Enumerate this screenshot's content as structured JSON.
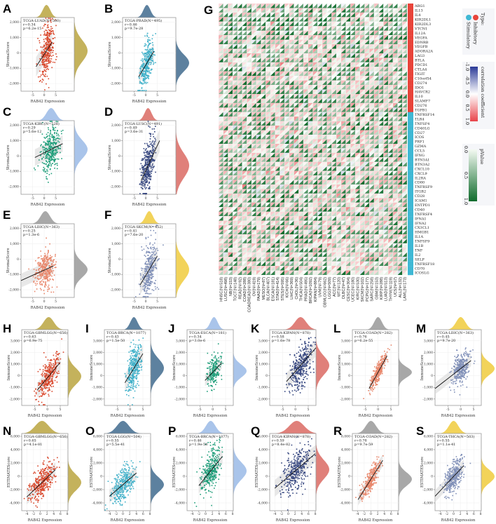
{
  "chart_data": [
    {
      "type": "scatter",
      "label": "A",
      "title": "TCGA-LUAD(N=500)",
      "n": 500,
      "r_text": "r=0.34",
      "p_text": "p=6.2e-15",
      "xlabel": "RAB42 Expression",
      "ylabel": "StromalScore",
      "xticks": [
        -5,
        0,
        5
      ],
      "yticks": [
        2000,
        1000,
        0,
        -1000,
        -2000
      ],
      "xlim": [
        -10,
        13
      ],
      "ylim": [
        -2500,
        2300
      ],
      "color": "#d9472b",
      "density_color": "#c4b25c",
      "x_mean": 1,
      "x_sd": 1.6,
      "y_sd": 700,
      "r": 0.34,
      "fit": [
        -3.5,
        -900,
        3.5,
        700
      ]
    },
    {
      "type": "scatter",
      "label": "B",
      "title": "TCGA-PRAD(N=495)",
      "n": 495,
      "r_text": "r=0.46",
      "p_text": "p=9.7e-28",
      "xlabel": "RAB42 Expression",
      "ylabel": "StromalScore",
      "xticks": [
        -5,
        0,
        5
      ],
      "yticks": [
        2000,
        1000,
        0,
        -1000,
        -2000
      ],
      "xlim": [
        -10,
        13
      ],
      "ylim": [
        -2500,
        2300
      ],
      "color": "#3fb0c9",
      "density_color": "#5d819f",
      "x_mean": 0.5,
      "x_sd": 1.5,
      "y_sd": 550,
      "r": 0.46,
      "fit": [
        -3,
        -1550,
        3.5,
        100
      ]
    },
    {
      "type": "scatter",
      "label": "C",
      "title": "TCGA-KIRC(N=528)",
      "n": 528,
      "r_text": "r=0.29",
      "p_text": "p=5.6e-12",
      "xlabel": "RAB42 Expression",
      "ylabel": "StromalScore",
      "xticks": [
        -5,
        0,
        5
      ],
      "yticks": [
        2000,
        1000,
        0,
        -1000,
        -2000
      ],
      "xlim": [
        -10,
        13
      ],
      "ylim": [
        -2500,
        2300
      ],
      "color": "#1f9e7a",
      "density_color": "#a9c4ea",
      "x_mean": 3,
      "x_sd": 2,
      "y_sd": 600,
      "r": 0.29,
      "fit": [
        -4,
        -100,
        8,
        800
      ]
    },
    {
      "type": "scatter",
      "label": "D",
      "title": "TCGA-LUSC(N=491)",
      "n": 491,
      "r_text": "r=0.49",
      "p_text": "p=3.6e-31",
      "xlabel": "RAB42 Expression",
      "ylabel": "StromalScore",
      "xticks": [
        -5,
        0,
        5
      ],
      "yticks": [
        2000,
        1000,
        0,
        -1000,
        -2000
      ],
      "xlim": [
        -10,
        13
      ],
      "ylim": [
        -2500,
        2300
      ],
      "color": "#34457f",
      "density_color": "#e0807a",
      "x_mean": 1,
      "x_sd": 1.5,
      "y_sd": 800,
      "r": 0.49,
      "fit": [
        -2,
        -1600,
        6,
        1000
      ]
    },
    {
      "type": "scatter",
      "label": "E",
      "title": "TCGA-LIHC(N=363)",
      "n": 363,
      "r_text": "r=0.25",
      "p_text": "p=1.3e-6",
      "xlabel": "RAB42 Expression",
      "ylabel": "StromalScore",
      "xticks": [
        -5,
        0,
        5
      ],
      "yticks": [
        2000,
        1000,
        0,
        -1000,
        -2000
      ],
      "xlim": [
        -10,
        13
      ],
      "ylim": [
        -2500,
        2300
      ],
      "color": "#e8866a",
      "density_color": "#a8a8a8",
      "x_mean": 0.5,
      "x_sd": 2,
      "y_sd": 500,
      "r": 0.25,
      "fit": [
        -10,
        -1400,
        4,
        -450
      ]
    },
    {
      "type": "scatter",
      "label": "F",
      "title": "TCGA-SKCM(N=452)",
      "n": 452,
      "r_text": "r=0.41",
      "p_text": "p=7.6e-20",
      "xlabel": "RAB42 Expression",
      "ylabel": "StromalScore",
      "xticks": [
        -5,
        0,
        5
      ],
      "yticks": [
        2000,
        1000,
        0,
        -1000,
        -2000
      ],
      "xlim": [
        -10,
        13
      ],
      "ylim": [
        -2500,
        2300
      ],
      "color": "#8090b8",
      "density_color": "#f2d35a",
      "x_mean": 1.5,
      "x_sd": 1.6,
      "y_sd": 700,
      "r": 0.41,
      "fit": [
        -2.5,
        -1700,
        5,
        200
      ]
    },
    {
      "type": "scatter",
      "label": "H",
      "title": "TCGA-GBMLGG(N=656)",
      "n": 656,
      "r_text": "r=0.63",
      "p_text": "p=6.9e-75",
      "xlabel": "RAB42 Expression",
      "ylabel": "ImmuneScore",
      "xticks": [
        -5,
        0,
        5
      ],
      "yticks": [
        3000,
        2000,
        1000,
        0,
        -1000,
        -2000
      ],
      "xlim": [
        -10,
        8
      ],
      "ylim": [
        -2550,
        3950
      ],
      "color": "#d9472b",
      "density_color": "#c4b25c",
      "x_mean": 0.5,
      "x_sd": 2,
      "y_sd": 700,
      "r": 0.63,
      "fit": [
        -4,
        -1250,
        5,
        1150
      ]
    },
    {
      "type": "scatter",
      "label": "I",
      "title": "TCGA-BRCA(N=1077)",
      "n": 1077,
      "r_text": "r=0.43",
      "p_text": "p=1.5e-50",
      "xlabel": "RAB42 Expression",
      "ylabel": "ImmuneScore",
      "xticks": [
        -5,
        0,
        5
      ],
      "yticks": [
        3000,
        2000,
        1000,
        0,
        -1000,
        -2000
      ],
      "xlim": [
        -10,
        8
      ],
      "ylim": [
        -2550,
        3950
      ],
      "color": "#3fb0c9",
      "density_color": "#5d819f",
      "x_mean": 1.5,
      "x_sd": 1.4,
      "y_sd": 800,
      "r": 0.43,
      "fit": [
        -2,
        -600,
        5,
        1900
      ]
    },
    {
      "type": "scatter",
      "label": "J",
      "title": "TCGA-ESCA(N=181)",
      "n": 181,
      "r_text": "r=0.34",
      "p_text": "p=3.0e-6",
      "xlabel": "RAB42 Expression",
      "ylabel": "ImmuneScore",
      "xticks": [
        -5,
        0,
        5
      ],
      "yticks": [
        3000,
        2000,
        1000,
        0,
        -1000,
        -2000
      ],
      "xlim": [
        -10,
        8
      ],
      "ylim": [
        -2550,
        3950
      ],
      "color": "#1f9e7a",
      "density_color": "#a9c4ea",
      "x_mean": 0.5,
      "x_sd": 1.4,
      "y_sd": 550,
      "r": 0.34,
      "fit": [
        -3,
        -400,
        3.5,
        1100
      ]
    },
    {
      "type": "scatter",
      "label": "K",
      "title": "TCGA-KIPAN(N=878)",
      "n": 878,
      "r_text": "r=0.58",
      "p_text": "p=1.6e-78",
      "xlabel": "RAB42 Expression",
      "ylabel": "ImmuneScore",
      "xticks": [
        -5,
        0,
        5
      ],
      "yticks": [
        3000,
        2000,
        1000,
        0,
        -1000,
        -2000
      ],
      "xlim": [
        -10,
        8
      ],
      "ylim": [
        -2550,
        3950
      ],
      "color": "#34457f",
      "density_color": "#e0807a",
      "x_mean": 2,
      "x_sd": 2.2,
      "y_sd": 800,
      "r": 0.58,
      "fit": [
        -3.5,
        -500,
        8,
        2400
      ]
    },
    {
      "type": "scatter",
      "label": "L",
      "title": "TCGA-COAD(N=282)",
      "n": 282,
      "r_text": "r=0.76",
      "p_text": "p=6.2e-55",
      "xlabel": "RAB42 Expression",
      "ylabel": "ImmuneScore",
      "xticks": [
        -5,
        0,
        5
      ],
      "yticks": [
        3000,
        2000,
        1000,
        0,
        -1000,
        -2000
      ],
      "xlim": [
        -10,
        8
      ],
      "ylim": [
        -2550,
        3950
      ],
      "color": "#e8866a",
      "density_color": "#a8a8a8",
      "x_mean": 0,
      "x_sd": 1.5,
      "y_sd": 450,
      "r": 0.76,
      "fit": [
        -3.5,
        -1100,
        3.5,
        1700
      ]
    },
    {
      "type": "scatter",
      "label": "M",
      "title": "TCGA-LIHC(N=363)",
      "n": 363,
      "r_text": "r=0.45",
      "p_text": "p=9.7e-20",
      "xlabel": "RAB42 Expression",
      "ylabel": "ImmuneScore",
      "xticks": [
        -5,
        0,
        5
      ],
      "yticks": [
        3000,
        2000,
        1000,
        0,
        -1000,
        -2000
      ],
      "xlim": [
        -10,
        8
      ],
      "ylim": [
        -2550,
        3950
      ],
      "color": "#8090b8",
      "density_color": "#f2d35a",
      "x_mean": 0,
      "x_sd": 1.8,
      "y_sd": 550,
      "r": 0.45,
      "fit": [
        -10,
        -1100,
        4,
        1300
      ]
    },
    {
      "type": "scatter",
      "label": "N",
      "title": "TCGA-GBMLGG(N=656)",
      "n": 656,
      "r_text": "r=0.65",
      "p_text": "p=4.1e-81",
      "xlabel": "RAB42 Expression",
      "ylabel": "ESTIMATEScore",
      "xticks": [
        -4,
        -2,
        0,
        2,
        4,
        6,
        8
      ],
      "yticks": [
        6000,
        4000,
        2000,
        0,
        -2000,
        -4000
      ],
      "xlim": [
        -5.5,
        8.2
      ],
      "ylim": [
        -5160,
        6420
      ],
      "color": "#d9472b",
      "density_color": "#c4b25c",
      "x_mean": 0.5,
      "x_sd": 2,
      "y_sd": 1200,
      "r": 0.65,
      "fit": [
        -4,
        -3100,
        4.5,
        1000
      ]
    },
    {
      "type": "scatter",
      "label": "O",
      "title": "TCGA-LGG(N=504)",
      "n": 504,
      "r_text": "r=0.55",
      "p_text": "p=5.5e-41",
      "xlabel": "RAB42 Expression",
      "ylabel": "ESTIMATEScore",
      "xticks": [
        -4,
        -2,
        0,
        2,
        4,
        6,
        8
      ],
      "yticks": [
        6000,
        4000,
        2000,
        0,
        -2000,
        -4000
      ],
      "xlim": [
        -5.5,
        8.2
      ],
      "ylim": [
        -5160,
        6420
      ],
      "color": "#3fb0c9",
      "density_color": "#5d819f",
      "x_mean": 0,
      "x_sd": 1.8,
      "y_sd": 1100,
      "r": 0.55,
      "fit": [
        -4,
        -3000,
        4,
        500
      ]
    },
    {
      "type": "scatter",
      "label": "P",
      "title": "TCGA-BRCA(N=1077)",
      "n": 1077,
      "r_text": "r=0.46",
      "p_text": "p=1.9e-58",
      "xlabel": "RAB42 Expression",
      "ylabel": "ESTIMATEScore",
      "xticks": [
        -4,
        -2,
        0,
        2,
        4,
        6,
        8
      ],
      "yticks": [
        6000,
        4000,
        2000,
        0,
        -2000,
        -4000
      ],
      "xlim": [
        -5.5,
        8.2
      ],
      "ylim": [
        -5160,
        6420
      ],
      "color": "#1f9e7a",
      "density_color": "#a9c4ea",
      "x_mean": 1.5,
      "x_sd": 1.4,
      "y_sd": 1300,
      "r": 0.46,
      "fit": [
        -2,
        -1400,
        5,
        3000
      ]
    },
    {
      "type": "scatter",
      "label": "Q",
      "title": "TCGA-KIPAN(N=878)",
      "n": 878,
      "r_text": "r=0.59",
      "p_text": "p=8.4e-82",
      "xlabel": "RAB42 Expression",
      "ylabel": "ESTIMATEScore",
      "xticks": [
        -4,
        -2,
        0,
        2,
        4,
        6,
        8
      ],
      "yticks": [
        6000,
        4000,
        2000,
        0,
        -2000,
        -4000
      ],
      "xlim": [
        -5.5,
        8.2
      ],
      "ylim": [
        -5160,
        6420
      ],
      "color": "#34457f",
      "density_color": "#e0807a",
      "x_mean": 2.5,
      "x_sd": 2.2,
      "y_sd": 1400,
      "r": 0.59,
      "fit": [
        -4,
        -1800,
        8,
        3400
      ]
    },
    {
      "type": "scatter",
      "label": "R",
      "title": "TCGA-COAD(N=282)",
      "n": 282,
      "r_text": "r=0.78",
      "p_text": "p=9.7e-59",
      "xlabel": "RAB42 Expression",
      "ylabel": "ESTIMATEScore",
      "xticks": [
        -4,
        -2,
        0,
        2,
        4,
        6,
        8
      ],
      "yticks": [
        6000,
        4000,
        2000,
        0,
        -2000,
        -4000
      ],
      "xlim": [
        -5.5,
        8.2
      ],
      "ylim": [
        -5160,
        6420
      ],
      "color": "#e8866a",
      "density_color": "#a8a8a8",
      "x_mean": 0,
      "x_sd": 1.5,
      "y_sd": 1000,
      "r": 0.78,
      "fit": [
        -3.8,
        -3500,
        3.5,
        2400
      ]
    },
    {
      "type": "scatter",
      "label": "S",
      "title": "TCGA-THCA(N=503)",
      "n": 503,
      "r_text": "r=0.55",
      "p_text": "p=1.1e-41",
      "xlabel": "RAB42 Expression",
      "ylabel": "ESTIMATEScore",
      "xticks": [
        -4,
        -2,
        0,
        2,
        4,
        6,
        8
      ],
      "yticks": [
        6000,
        4000,
        2000,
        0,
        -2000,
        -4000
      ],
      "xlim": [
        -5.5,
        8.2
      ],
      "ylim": [
        -5160,
        6420
      ],
      "color": "#8090b8",
      "density_color": "#f2d35a",
      "x_mean": 0,
      "x_sd": 1.4,
      "y_sd": 1000,
      "r": 0.55,
      "fit": [
        -5.5,
        -3000,
        3,
        1600
      ]
    },
    {
      "type": "heatmap",
      "label": "G",
      "columns": [
        "HNSC(N=518)",
        "LUSC(N=498)",
        "NB(N=153)",
        "TGCT(N=148)",
        "READ(N=92)",
        "COAD(N=288)",
        "COADREAD(N=380)",
        "OV(N=419)",
        "PAAD(N=179)",
        "MESO(N=87)",
        "BLCA(N=407)",
        "ESCA(N=181)",
        "STAD(N=414)",
        "STES(N=595)",
        "KICH(N=66)",
        "LIHC(N=369)",
        "CHOL(N=36)",
        "THCA(N=504)",
        "PRAD(N=495)",
        "BRCA(N=1092)",
        "KIPAN(N=884)",
        "UVM(N=79)",
        "GBMLGG(N=662)",
        "LGG(N=509)",
        "ACC(N=77)",
        "WT(N=120)",
        "DLBC(N=47)",
        "CESC(N=304)",
        "UCEC(N=180)",
        "KIRC(N=530)",
        "SKCM(N=102)",
        "PCPG(N=177)",
        "SARC(N=258)",
        "GBM(N=153)",
        "KIRP(N=288)",
        "LUAD(N=513)",
        "THYM(N=119)",
        "UCS(N=57)",
        "ALL(N=132)",
        "LAML(N=173)"
      ],
      "rows": [
        "ARG1",
        "IL13",
        "IL4",
        "KIR2DL1",
        "KIR2DL3",
        "VTCN1",
        "IL12A",
        "VEGFA",
        "EDNRB",
        "VEGFB",
        "ADORA2A",
        "LAG3",
        "BTLA",
        "PDCD1",
        "CTLA4",
        "TIGIT",
        "C10orf54",
        "CD274",
        "IDO1",
        "HAVCR2",
        "IL10",
        "SLAMF7",
        "CD276",
        "TGFB1",
        "TNFRSF14",
        "TLR4",
        "TNFSF4",
        "CD40LG",
        "CD27",
        "ICOS",
        "PRF1",
        "GZMA",
        "CCL5",
        "IFNG",
        "BTN3A1",
        "BTN3A2",
        "CXCL10",
        "CXCL9",
        "IL2RA",
        "CD80",
        "TNFRSF9",
        "ITGB2",
        "CD28",
        "ICAM1",
        "ENTPD1",
        "CD40",
        "TNFRSF4",
        "IFNA1",
        "IFNA2",
        "CX3CL1",
        "HMGB1",
        "IL1A",
        "TNFSF9",
        "IL1B",
        "TNF",
        "IL2",
        "SELP",
        "TNFRSF18",
        "CD70",
        "ICOSLG"
      ],
      "row_types_inhibitory_count": 24,
      "legend": {
        "type_title": "Type:",
        "type_items": [
          {
            "label": "Inhibitory",
            "color": "#e8443a"
          },
          {
            "label": "Stimulatory",
            "color": "#3fb8d4"
          }
        ],
        "corr_title": "correlation coefficient",
        "corr_ticks": [
          "-1.0",
          "-0.5",
          "0.0",
          "0.5",
          "1.0"
        ],
        "corr_colors": [
          "#2b3a98",
          "#ffffff",
          "#e8444a"
        ],
        "p_title": "pValue",
        "p_ticks": [
          "0.0",
          "0.5",
          "1.0"
        ],
        "p_colors": [
          "#f4faf2",
          "#0e6b2c"
        ]
      }
    }
  ]
}
